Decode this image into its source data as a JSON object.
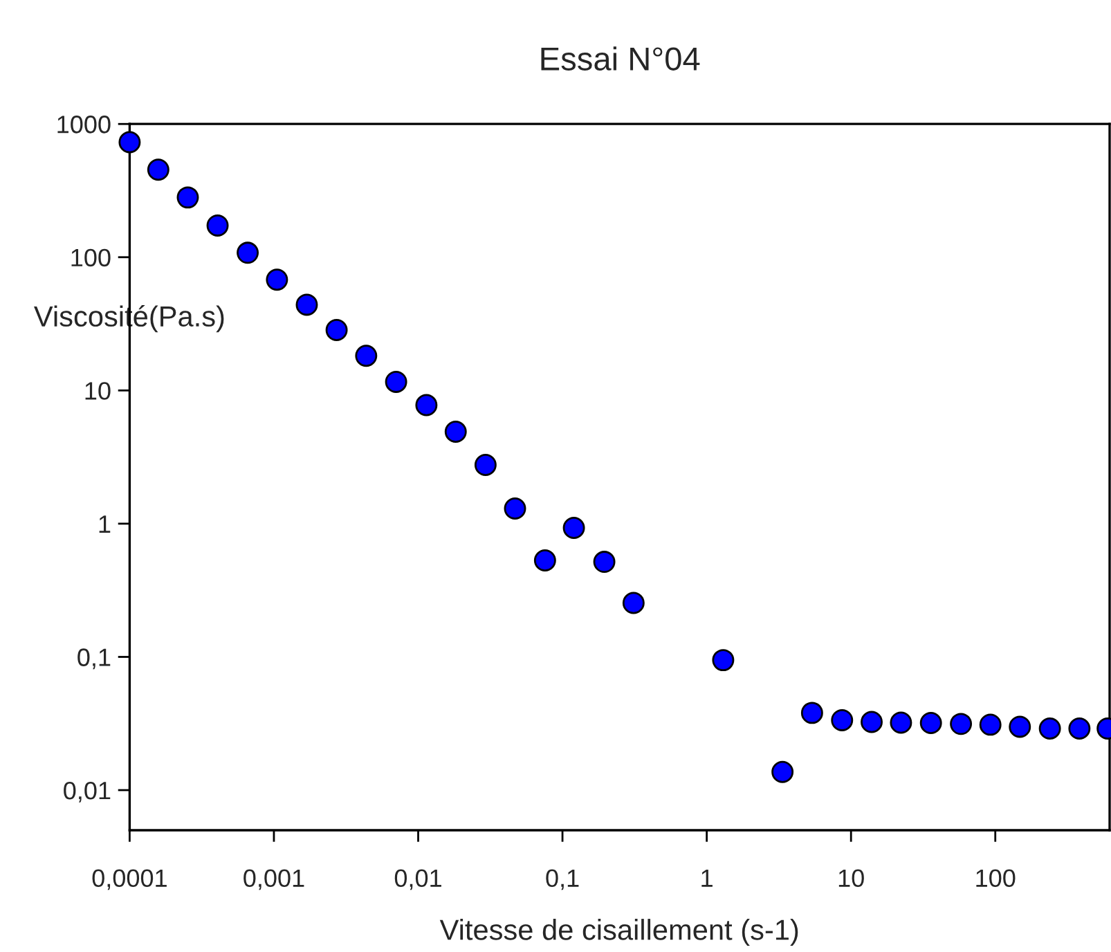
{
  "chart_data": {
    "type": "scatter",
    "title": "Essai N°04",
    "xlabel": "Vitesse de cisaillement (s-1)",
    "ylabel": "Viscosité(Pa.s)",
    "log": "xy",
    "grid": false,
    "legend": false,
    "marker": "circle",
    "xlim": [
      0.0001,
      620
    ],
    "ylim": [
      0.005,
      1000
    ],
    "xticks": [
      {
        "value": 0.0001,
        "label": "0,0001"
      },
      {
        "value": 0.001,
        "label": "0,001"
      },
      {
        "value": 0.01,
        "label": "0,01"
      },
      {
        "value": 0.1,
        "label": "0,1"
      },
      1,
      10,
      100
    ],
    "yticks": [
      {
        "value": 0.01,
        "label": "0,01"
      },
      {
        "value": 0.1,
        "label": "0,1"
      },
      1,
      10,
      100,
      1000
    ],
    "series": [
      {
        "color": "#0000ff",
        "x": [
          0.0001,
          0.000158,
          0.000253,
          0.000407,
          0.000658,
          0.00105,
          0.00169,
          0.00272,
          0.00436,
          0.00703,
          0.0114,
          0.0182,
          0.0293,
          0.0469,
          0.0757,
          0.12,
          0.195,
          0.311,
          1.3,
          3.35,
          5.37,
          8.67,
          13.9,
          22.2,
          35.8,
          57.8,
          92.5,
          148,
          239,
          383,
          601
        ],
        "values": [
          730,
          454,
          281,
          173,
          108,
          67.8,
          44,
          28.4,
          18.2,
          11.6,
          7.76,
          4.9,
          2.76,
          1.3,
          0.53,
          0.93,
          0.517,
          0.254,
          0.0946,
          0.0137,
          0.038,
          0.0335,
          0.0325,
          0.0321,
          0.0319,
          0.0314,
          0.031,
          0.0299,
          0.029,
          0.029,
          0.029
        ]
      }
    ]
  }
}
